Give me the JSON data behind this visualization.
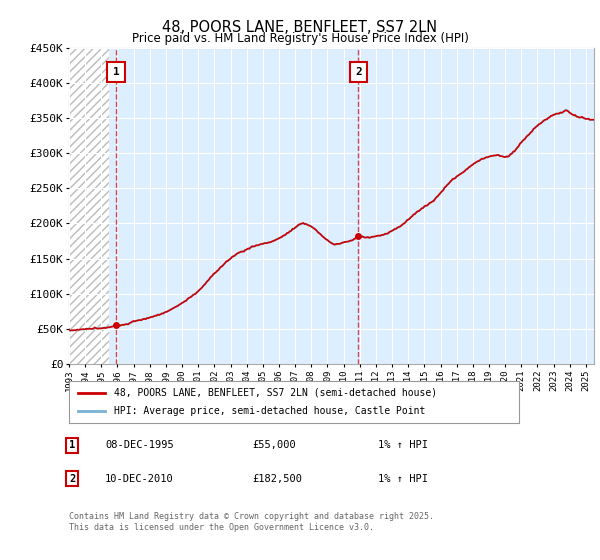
{
  "title": "48, POORS LANE, BENFLEET, SS7 2LN",
  "subtitle": "Price paid vs. HM Land Registry's House Price Index (HPI)",
  "legend_line1": "48, POORS LANE, BENFLEET, SS7 2LN (semi-detached house)",
  "legend_line2": "HPI: Average price, semi-detached house, Castle Point",
  "footer": "Contains HM Land Registry data © Crown copyright and database right 2025.\nThis data is licensed under the Open Government Licence v3.0.",
  "annotation1_date": "08-DEC-1995",
  "annotation1_price": "£55,000",
  "annotation1_hpi": "1% ↑ HPI",
  "annotation2_date": "10-DEC-2010",
  "annotation2_price": "£182,500",
  "annotation2_hpi": "1% ↑ HPI",
  "sale1_x": 1995.92,
  "sale1_y": 55000,
  "sale2_x": 2010.92,
  "sale2_y": 182500,
  "ylim": [
    0,
    450000
  ],
  "xlim": [
    1993,
    2025.5
  ],
  "hpi_line_color": "#7ab0d4",
  "price_line_color": "#cc0000",
  "chart_bg_color": "#ddeeff",
  "hatch_color": "#bbbbbb",
  "grid_color": "#ffffff",
  "vline_color": "#cc0000",
  "vline_alpha": 0.7,
  "fig_bg": "#ffffff"
}
